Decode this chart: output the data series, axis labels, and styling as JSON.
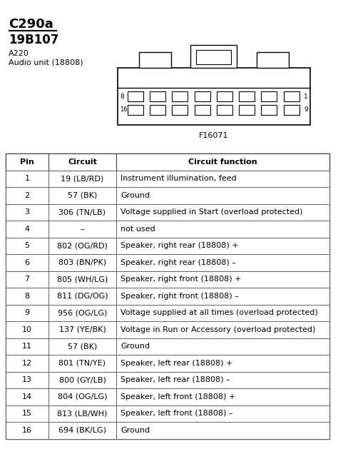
{
  "title": "C290a",
  "subtitle": "19B107",
  "label1": "A220",
  "label2": "Audio unit (18808)",
  "figure_label": "F16071",
  "bg_color": "#ffffff",
  "table_header": [
    "Pin",
    "Circuit",
    "Circuit function"
  ],
  "table_rows": [
    [
      "1",
      "19 (LB/RD)",
      "Instrument illumination, feed"
    ],
    [
      "2",
      "57 (BK)",
      "Ground"
    ],
    [
      "3",
      "306 (TN/LB)",
      "Voltage supplied in Start (overload protected)"
    ],
    [
      "4",
      "–",
      "not used"
    ],
    [
      "5",
      "802 (OG/RD)",
      "Speaker, right rear (18808) +"
    ],
    [
      "6",
      "803 (BN/PK)",
      "Speaker, right rear (18808) –"
    ],
    [
      "7",
      "805 (WH/LG)",
      "Speaker, right front (18808) +"
    ],
    [
      "8",
      "811 (DG/OG)",
      "Speaker, right front (18808) –"
    ],
    [
      "9",
      "956 (OG/LG)",
      "Voltage supplied at all times (overload protected)"
    ],
    [
      "10",
      "137 (YE/BK)",
      "Voltage in Run or Accessory (overload protected)"
    ],
    [
      "11",
      "57 (BK)",
      "Ground"
    ],
    [
      "12",
      "801 (TN/YE)",
      "Speaker, left rear (18808) +"
    ],
    [
      "13",
      "800 (GY/LB)",
      "Speaker, left rear (18808) –"
    ],
    [
      "14",
      "804 (OG/LG)",
      "Speaker, left front (18808) +"
    ],
    [
      "15",
      "813 (LB/WH)",
      "Speaker, left front (18808) –"
    ],
    [
      "16",
      "694 (BK/LG)",
      "Ground"
    ]
  ],
  "title_fontsize": 13,
  "subtitle_fontsize": 12,
  "label_fontsize": 8,
  "table_fontsize": 8,
  "fig_label_fontsize": 8
}
